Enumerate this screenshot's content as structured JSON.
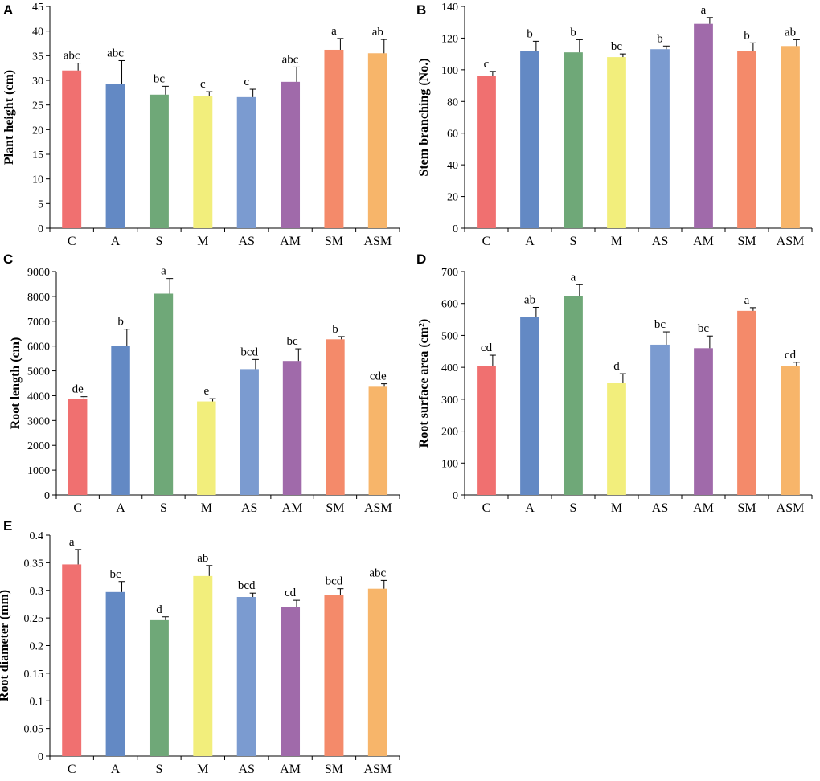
{
  "chart_data": [
    {
      "panel": "A",
      "type": "bar",
      "title": "",
      "xlabel": "",
      "ylabel": "Plant height (cm)",
      "ylim": [
        0,
        45
      ],
      "ytick_step": 5,
      "ytick_decimals": 0,
      "categories": [
        "C",
        "A",
        "S",
        "M",
        "AS",
        "AM",
        "SM",
        "ASM"
      ],
      "values": [
        32.0,
        29.2,
        27.1,
        26.8,
        26.6,
        29.7,
        36.2,
        35.5
      ],
      "errors": [
        1.5,
        4.8,
        1.7,
        0.9,
        1.6,
        3.0,
        2.3,
        2.8
      ],
      "letters": [
        "abc",
        "abc",
        "bc",
        "c",
        "c",
        "abc",
        "a",
        "ab"
      ]
    },
    {
      "panel": "B",
      "type": "bar",
      "title": "",
      "xlabel": "",
      "ylabel": "Stem branching (No.)",
      "ylim": [
        0,
        140
      ],
      "ytick_step": 20,
      "ytick_decimals": 0,
      "categories": [
        "C",
        "A",
        "S",
        "M",
        "AS",
        "AM",
        "SM",
        "ASM"
      ],
      "values": [
        96,
        112,
        111,
        108,
        113,
        129,
        112,
        115
      ],
      "errors": [
        3,
        6,
        8,
        2,
        2,
        4,
        5,
        4
      ],
      "letters": [
        "c",
        "b",
        "b",
        "bc",
        "b",
        "a",
        "b",
        "ab"
      ]
    },
    {
      "panel": "C",
      "type": "bar",
      "title": "",
      "xlabel": "",
      "ylabel": "Root length (cm)",
      "ylim": [
        0,
        9000
      ],
      "ytick_step": 1000,
      "ytick_decimals": 0,
      "categories": [
        "C",
        "A",
        "S",
        "M",
        "AS",
        "AM",
        "SM",
        "ASM"
      ],
      "values": [
        3870,
        6020,
        8110,
        3770,
        5070,
        5400,
        6270,
        4360
      ],
      "errors": [
        90,
        660,
        610,
        110,
        390,
        490,
        110,
        120
      ],
      "letters": [
        "de",
        "b",
        "a",
        "e",
        "bcd",
        "bc",
        "b",
        "cde"
      ]
    },
    {
      "panel": "D",
      "type": "bar",
      "title": "",
      "xlabel": "",
      "ylabel": "Root surface area (cm²)",
      "ylim": [
        0,
        700
      ],
      "ytick_step": 100,
      "ytick_decimals": 0,
      "categories": [
        "C",
        "A",
        "S",
        "M",
        "AS",
        "AM",
        "SM",
        "ASM"
      ],
      "values": [
        405,
        558,
        624,
        350,
        471,
        460,
        577,
        404
      ],
      "errors": [
        33,
        30,
        35,
        30,
        40,
        38,
        10,
        12
      ],
      "letters": [
        "cd",
        "ab",
        "a",
        "d",
        "bc",
        "bc",
        "a",
        "cd"
      ]
    },
    {
      "panel": "E",
      "type": "bar",
      "title": "",
      "xlabel": "",
      "ylabel": "Root diameter (mm)",
      "ylim": [
        0,
        0.4
      ],
      "ytick_step": 0.05,
      "ytick_decimals": 2,
      "categories": [
        "C",
        "A",
        "S",
        "M",
        "AS",
        "AM",
        "SM",
        "ASM"
      ],
      "values": [
        0.347,
        0.297,
        0.246,
        0.326,
        0.288,
        0.27,
        0.291,
        0.303
      ],
      "errors": [
        0.027,
        0.019,
        0.006,
        0.019,
        0.007,
        0.012,
        0.012,
        0.015
      ],
      "letters": [
        "a",
        "bc",
        "d",
        "ab",
        "bcd",
        "cd",
        "bcd",
        "abc"
      ]
    }
  ],
  "bar_colors": [
    "#f07070",
    "#6389c4",
    "#6fa878",
    "#f2ee7c",
    "#7b9bd0",
    "#a06aaa",
    "#f48a6a",
    "#f7b56a"
  ],
  "axis_color": "#000000"
}
